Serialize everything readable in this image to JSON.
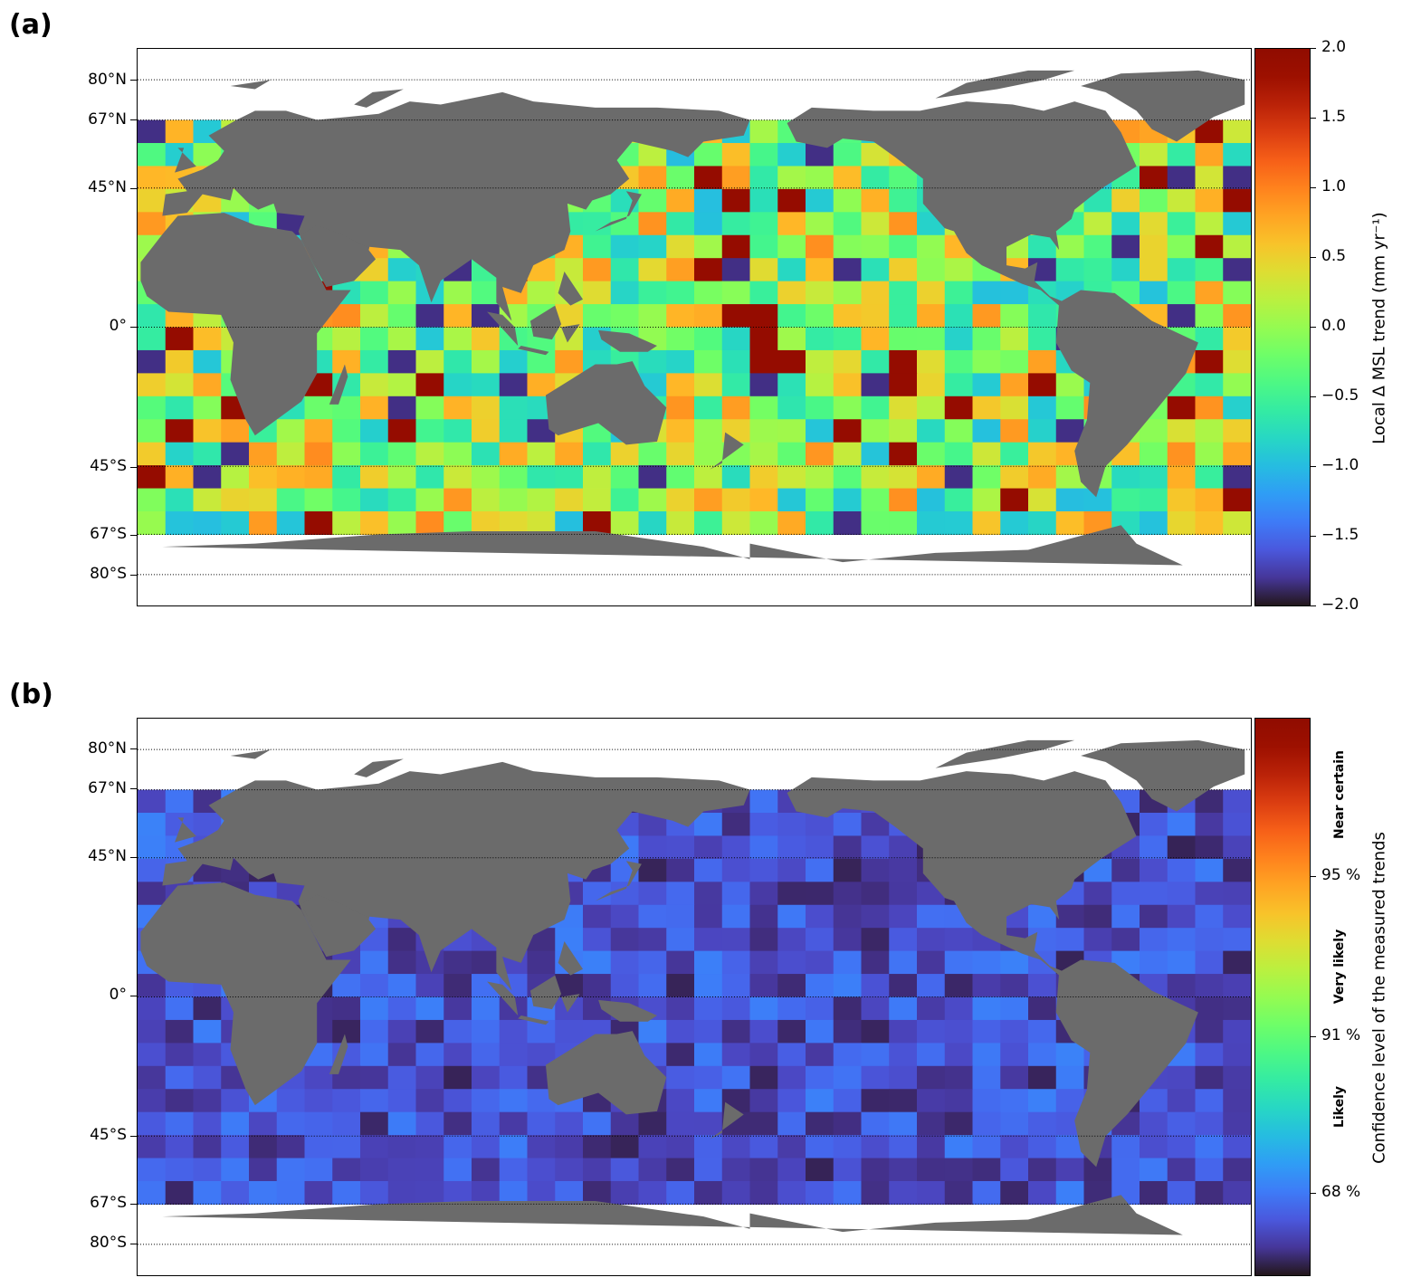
{
  "panels": [
    {
      "letter": "(a)",
      "lat_labels": [
        "80°N",
        "67°N",
        "45°N",
        "0°",
        "45°S",
        "67°S",
        "80°S"
      ],
      "colorbar": {
        "title": "Local Δ MSL trend (mm yr⁻¹)",
        "ticks": [
          "2.0",
          "1.5",
          "1.0",
          "0.5",
          "0.0",
          "−0.5",
          "−1.0",
          "−1.5",
          "−2.0"
        ],
        "range": [
          -2.0,
          2.0
        ],
        "colormap": "turbo"
      }
    },
    {
      "letter": "(b)",
      "lat_labels": [
        "80°N",
        "67°N",
        "45°N",
        "0°",
        "45°S",
        "67°S",
        "80°S"
      ],
      "colorbar": {
        "title": "Confidence level of the measured trends",
        "ticks": [
          "95 %",
          "91 %",
          "68 %"
        ],
        "categories": [
          "Near certain",
          "Very likely",
          "Likely"
        ],
        "colormap": "turbo"
      }
    }
  ],
  "colors": {
    "land": "#6b6b6b",
    "no_data_ocean": "#ffffff",
    "gridline": "#000000"
  }
}
